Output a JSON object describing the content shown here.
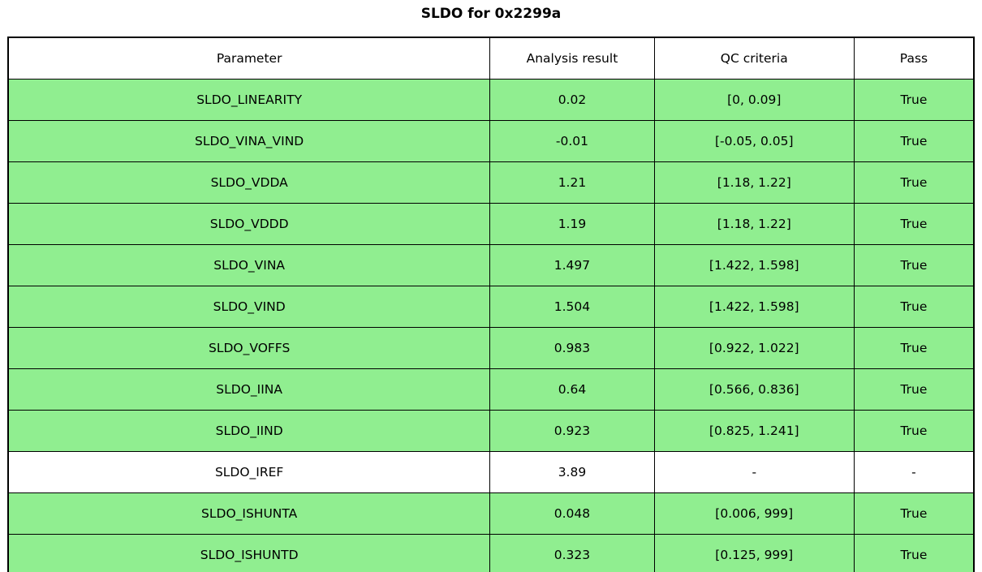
{
  "title": "SLDO for 0x2299a",
  "colors": {
    "pass_row_bg": "#90ee90",
    "neutral_row_bg": "#ffffff",
    "border": "#000000",
    "text": "#000000"
  },
  "chart_data": {
    "type": "table",
    "title": "SLDO for 0x2299a",
    "columns": [
      "Parameter",
      "Analysis result",
      "QC criteria",
      "Pass"
    ],
    "rows": [
      {
        "parameter": "SLDO_LINEARITY",
        "analysis_result": "0.02",
        "qc_criteria": "[0, 0.09]",
        "pass": "True",
        "highlighted": true
      },
      {
        "parameter": "SLDO_VINA_VIND",
        "analysis_result": "-0.01",
        "qc_criteria": "[-0.05, 0.05]",
        "pass": "True",
        "highlighted": true
      },
      {
        "parameter": "SLDO_VDDA",
        "analysis_result": "1.21",
        "qc_criteria": "[1.18, 1.22]",
        "pass": "True",
        "highlighted": true
      },
      {
        "parameter": "SLDO_VDDD",
        "analysis_result": "1.19",
        "qc_criteria": "[1.18, 1.22]",
        "pass": "True",
        "highlighted": true
      },
      {
        "parameter": "SLDO_VINA",
        "analysis_result": "1.497",
        "qc_criteria": "[1.422, 1.598]",
        "pass": "True",
        "highlighted": true
      },
      {
        "parameter": "SLDO_VIND",
        "analysis_result": "1.504",
        "qc_criteria": "[1.422, 1.598]",
        "pass": "True",
        "highlighted": true
      },
      {
        "parameter": "SLDO_VOFFS",
        "analysis_result": "0.983",
        "qc_criteria": "[0.922, 1.022]",
        "pass": "True",
        "highlighted": true
      },
      {
        "parameter": "SLDO_IINA",
        "analysis_result": "0.64",
        "qc_criteria": "[0.566, 0.836]",
        "pass": "True",
        "highlighted": true
      },
      {
        "parameter": "SLDO_IIND",
        "analysis_result": "0.923",
        "qc_criteria": "[0.825, 1.241]",
        "pass": "True",
        "highlighted": true
      },
      {
        "parameter": "SLDO_IREF",
        "analysis_result": "3.89",
        "qc_criteria": "-",
        "pass": "-",
        "highlighted": false
      },
      {
        "parameter": "SLDO_ISHUNTA",
        "analysis_result": "0.048",
        "qc_criteria": "[0.006, 999]",
        "pass": "True",
        "highlighted": true
      },
      {
        "parameter": "SLDO_ISHUNTD",
        "analysis_result": "0.323",
        "qc_criteria": "[0.125, 999]",
        "pass": "True",
        "highlighted": true
      }
    ]
  }
}
